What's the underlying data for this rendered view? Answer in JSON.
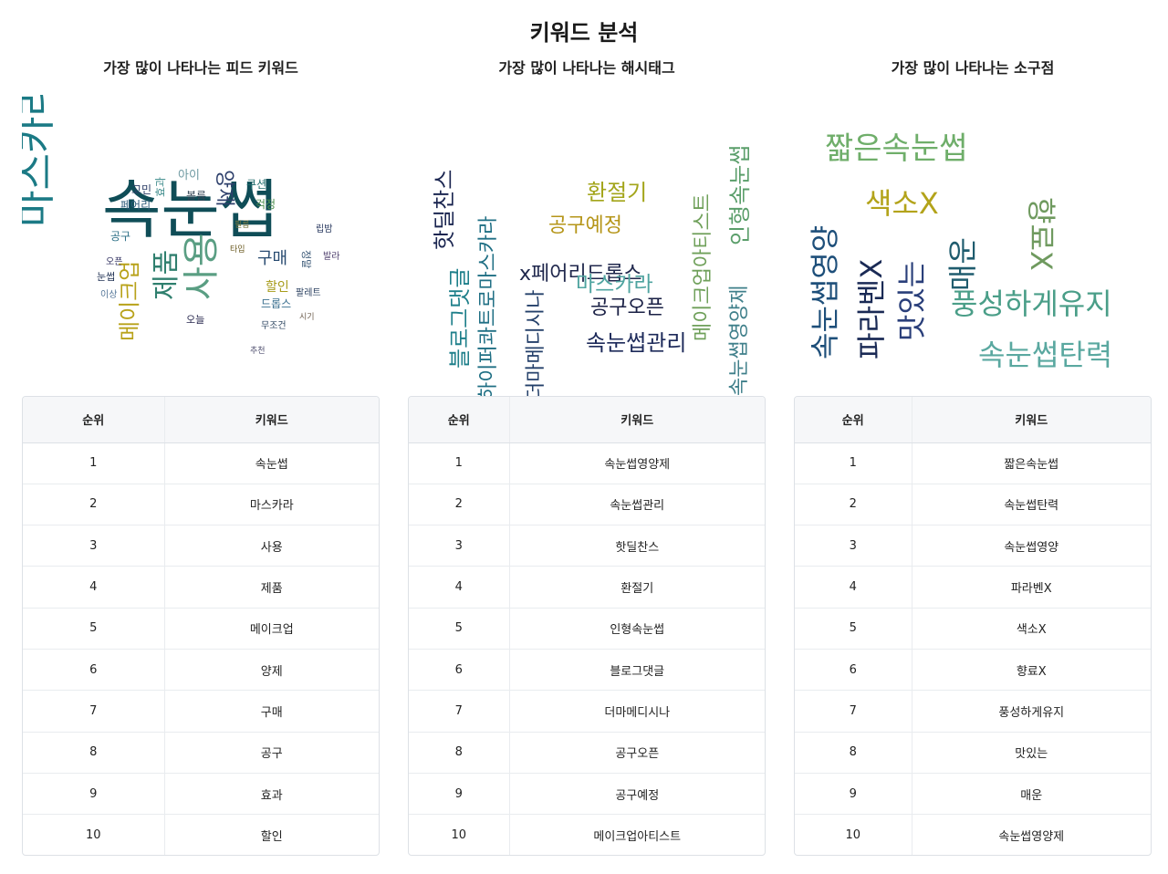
{
  "title": "키워드 분석",
  "table_headers": {
    "rank": "순위",
    "keyword": "키워드"
  },
  "sections": [
    {
      "title": "가장 많이 나타나는 피드 키워드",
      "rows": [
        {
          "rank": "1",
          "keyword": "속눈썹"
        },
        {
          "rank": "2",
          "keyword": "마스카라"
        },
        {
          "rank": "3",
          "keyword": "사용"
        },
        {
          "rank": "4",
          "keyword": "제품"
        },
        {
          "rank": "5",
          "keyword": "메이크업"
        },
        {
          "rank": "6",
          "keyword": "양제"
        },
        {
          "rank": "7",
          "keyword": "구매"
        },
        {
          "rank": "8",
          "keyword": "공구"
        },
        {
          "rank": "9",
          "keyword": "효과"
        },
        {
          "rank": "10",
          "keyword": "할인"
        }
      ],
      "cloud": [
        {
          "text": "속눈썹",
          "color": "#0f4d57",
          "weight": 1
        },
        {
          "text": "마스카라",
          "color": "#1b7a85",
          "weight": 0.8
        },
        {
          "text": "사용",
          "color": "#5a9e83",
          "weight": 0.6
        },
        {
          "text": "제품",
          "color": "#2f7f6e",
          "weight": 0.5
        },
        {
          "text": "메이크업",
          "color": "#b8a21a",
          "weight": 0.45
        },
        {
          "text": "양제",
          "color": "#2d3f6b",
          "weight": 0.4
        },
        {
          "text": "구매",
          "color": "#274a70",
          "weight": 0.35
        },
        {
          "text": "공구",
          "color": "#2c6f86",
          "weight": 0.2
        },
        {
          "text": "효과",
          "color": "#3b8a8a",
          "weight": 0.2
        },
        {
          "text": "할인",
          "color": "#a79c1a",
          "weight": 0.2
        },
        {
          "text": "쿠션",
          "color": "#1d6b6b",
          "weight": 0.18
        },
        {
          "text": "걱정",
          "color": "#4f8f4f",
          "weight": 0.18
        },
        {
          "text": "아이",
          "color": "#6f9aa2",
          "weight": 0.18
        },
        {
          "text": "고민",
          "color": "#2b3d66",
          "weight": 0.16
        },
        {
          "text": "페어리",
          "color": "#2d5a7a",
          "weight": 0.16
        },
        {
          "text": "볼륨",
          "color": "#334455",
          "weight": 0.15
        },
        {
          "text": "드롭스",
          "color": "#3a6f8f",
          "weight": 0.15
        },
        {
          "text": "오늘",
          "color": "#2a2a50",
          "weight": 0.13
        },
        {
          "text": "눈썹",
          "color": "#223355",
          "weight": 0.13
        },
        {
          "text": "정말",
          "color": "#305070",
          "weight": 0.13
        },
        {
          "text": "팔레트",
          "color": "#2a4060",
          "weight": 0.12
        },
        {
          "text": "발라",
          "color": "#4a3a6a",
          "weight": 0.12
        },
        {
          "text": "립밤",
          "color": "#2a3a60",
          "weight": 0.12
        },
        {
          "text": "무조건",
          "color": "#2d4560",
          "weight": 0.11
        },
        {
          "text": "이상",
          "color": "#557799",
          "weight": 0.1
        },
        {
          "text": "오픈",
          "color": "#303060",
          "weight": 0.1
        },
        {
          "text": "필름",
          "color": "#7a7a40",
          "weight": 0.09
        },
        {
          "text": "타입",
          "color": "#6a5a20",
          "weight": 0.09
        },
        {
          "text": "추천",
          "color": "#505070",
          "weight": 0.09
        },
        {
          "text": "시기",
          "color": "#706050",
          "weight": 0.08
        }
      ]
    },
    {
      "title": "가장 많이 나타나는 해시태그",
      "rows": [
        {
          "rank": "1",
          "keyword": "속눈썹영양제"
        },
        {
          "rank": "2",
          "keyword": "속눈썹관리"
        },
        {
          "rank": "3",
          "keyword": "핫딜찬스"
        },
        {
          "rank": "4",
          "keyword": "환절기"
        },
        {
          "rank": "5",
          "keyword": "인형속눈썹"
        },
        {
          "rank": "6",
          "keyword": "블로그댓글"
        },
        {
          "rank": "7",
          "keyword": "더마메디시나"
        },
        {
          "rank": "8",
          "keyword": "공구오픈"
        },
        {
          "rank": "9",
          "keyword": "공구예정"
        },
        {
          "rank": "10",
          "keyword": "메이크업아티스트"
        }
      ],
      "cloud": [
        {
          "text": "속눈썹영양제",
          "color": "#3f7f8a"
        },
        {
          "text": "속눈썹관리",
          "color": "#1d2a5a"
        },
        {
          "text": "핫딜찬스",
          "color": "#1a2550"
        },
        {
          "text": "환절기",
          "color": "#a3a51a"
        },
        {
          "text": "인형속눈썹",
          "color": "#5a9e6a"
        },
        {
          "text": "블로그댓글",
          "color": "#1e7f8a"
        },
        {
          "text": "더마메디시나",
          "color": "#24406a"
        },
        {
          "text": "공구오픈",
          "color": "#1a2045"
        },
        {
          "text": "공구예정",
          "color": "#b59518"
        },
        {
          "text": "메이크업아티스트",
          "color": "#6fa05a"
        },
        {
          "text": "x페어리드롭스",
          "color": "#20284d"
        },
        {
          "text": "마스카라",
          "color": "#4fa4a0"
        },
        {
          "text": "하이퍼콰트로마스카라",
          "color": "#1f6f84"
        }
      ]
    },
    {
      "title": "가장 많이 나타나는 소구점",
      "rows": [
        {
          "rank": "1",
          "keyword": "짧은속눈썹"
        },
        {
          "rank": "2",
          "keyword": "속눈썹탄력"
        },
        {
          "rank": "3",
          "keyword": "속눈썹영양"
        },
        {
          "rank": "4",
          "keyword": "파라벤X"
        },
        {
          "rank": "5",
          "keyword": "색소X"
        },
        {
          "rank": "6",
          "keyword": "향료X"
        },
        {
          "rank": "7",
          "keyword": "풍성하게유지"
        },
        {
          "rank": "8",
          "keyword": "맛있는"
        },
        {
          "rank": "9",
          "keyword": "매운"
        },
        {
          "rank": "10",
          "keyword": "속눈썹영양제"
        }
      ],
      "cloud": [
        {
          "text": "짧은속눈썹",
          "color": "#6fae6a"
        },
        {
          "text": "색소X",
          "color": "#b3a31a"
        },
        {
          "text": "속눈썹영양",
          "color": "#1e4f7a"
        },
        {
          "text": "파라벤X",
          "color": "#1a2a55"
        },
        {
          "text": "맛있는",
          "color": "#2a3f7a"
        },
        {
          "text": "매운",
          "color": "#1f5c6e"
        },
        {
          "text": "향료X",
          "color": "#6f9a5f"
        },
        {
          "text": "풍성하게유지",
          "color": "#4a9e88"
        },
        {
          "text": "속눈썹탄력",
          "color": "#5aa8a0"
        }
      ]
    }
  ]
}
